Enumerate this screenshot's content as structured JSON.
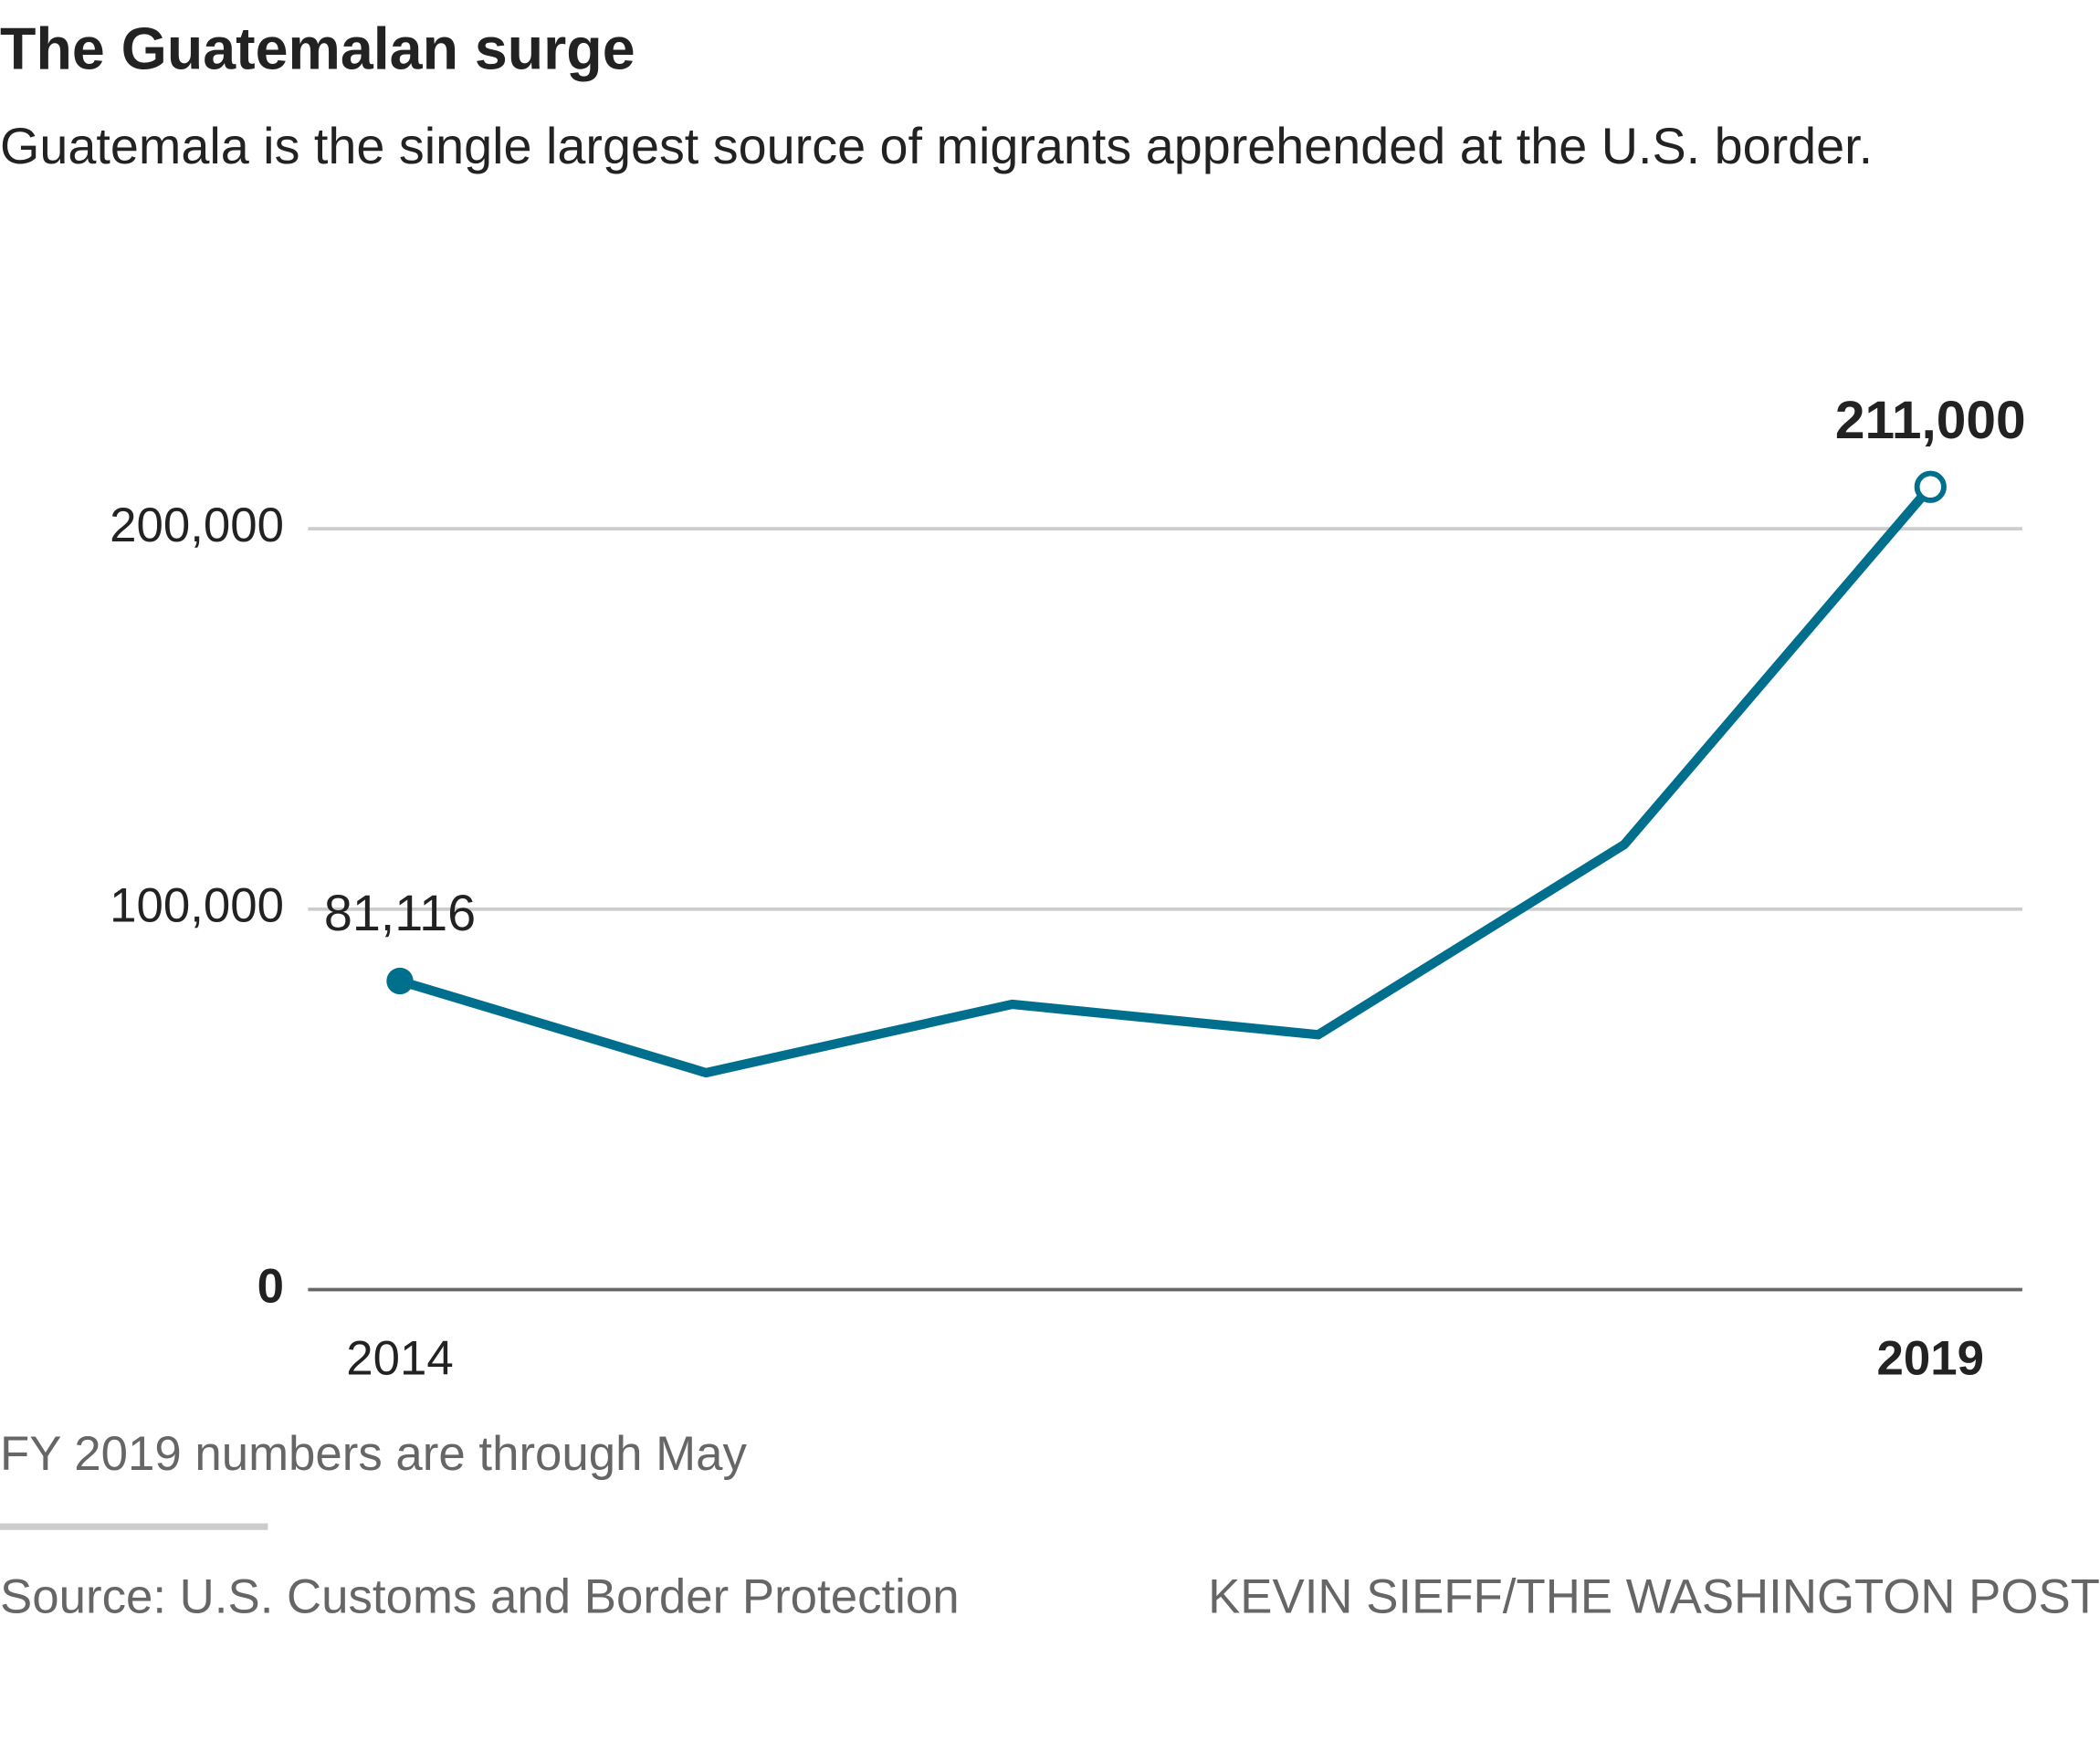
{
  "chart_data": {
    "type": "line",
    "title": "The Guatemalan surge",
    "subtitle": "Guatemala is the single largest source of migrants apprehended at the U.S. border.",
    "x": [
      2014,
      2015,
      2016,
      2017,
      2018,
      2019
    ],
    "values": [
      81116,
      57000,
      75000,
      67000,
      117000,
      211000
    ],
    "value_labels": [
      "81,116",
      null,
      null,
      null,
      null,
      "211,000"
    ],
    "color": "#006f8e",
    "xlim": [
      2013.7,
      2019.3
    ],
    "xticks": [
      2014,
      2019
    ],
    "ylim": [
      0,
      220000
    ],
    "yticks": [
      0,
      {
        "value": 100000,
        "label": "100,000"
      },
      {
        "value": 200000,
        "label": "200,000"
      }
    ],
    "grid": true,
    "note": "FY 2019 numbers are through May",
    "source": "Source: U.S. Customs and Border Protection",
    "credit": "KEVIN SIEFF/THE WASHINGTON POST"
  }
}
